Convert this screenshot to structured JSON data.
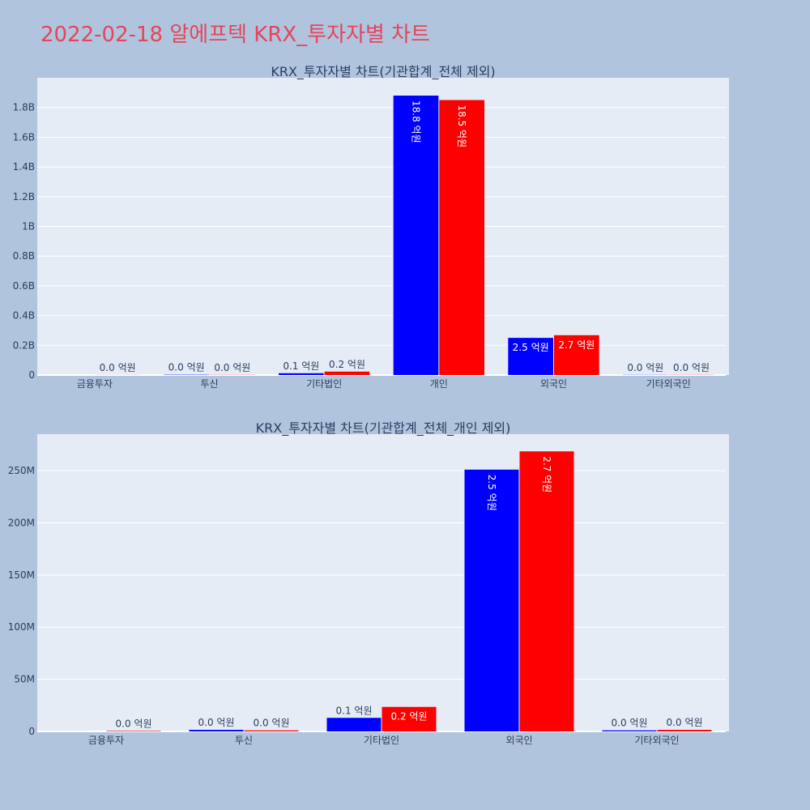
{
  "page": {
    "title": "2022-02-18 알에프텍 KRX_투자자별 차트"
  },
  "colors": {
    "background": "#b0c4de",
    "plot_background": "#e5ecf6",
    "title": "#e5455a",
    "series_a": "#0000ff",
    "series_b": "#ff0000"
  },
  "chart_data": [
    {
      "type": "bar",
      "title": "KRX_투자자별 차트(기관합계_전체 제외)",
      "xlabel": "",
      "ylabel": "",
      "categories": [
        "금융투자",
        "투신",
        "기타법인",
        "개인",
        "외국인",
        "기타외국인"
      ],
      "series": [
        {
          "color": "#0000ff",
          "values": [
            0,
            2000000,
            12000000,
            1880000000,
            250000000,
            1000000
          ],
          "labels": [
            "",
            "0.0 억원",
            "0.1 억원",
            "18.8 억원",
            "2.5 억원",
            "0.0 억원"
          ]
        },
        {
          "color": "#ff0000",
          "values": [
            500000,
            1000000,
            23000000,
            1850000000,
            268000000,
            1000000
          ],
          "labels": [
            "0.0 억원",
            "0.0 억원",
            "0.2 억원",
            "18.5 억원",
            "2.7 억원",
            "0.0 억원"
          ]
        }
      ],
      "ylim": [
        0,
        2000000000
      ],
      "ytick_values": [
        0,
        200000000,
        400000000,
        600000000,
        800000000,
        1000000000,
        1200000000,
        1400000000,
        1600000000,
        1800000000
      ],
      "ytick_labels": [
        "0",
        "0.2B",
        "0.4B",
        "0.6B",
        "0.8B",
        "1B",
        "1.2B",
        "1.4B",
        "1.6B",
        "1.8B"
      ],
      "grid": true
    },
    {
      "type": "bar",
      "title": "KRX_투자자별 차트(기관합계_전체_개인 제외)",
      "xlabel": "",
      "ylabel": "",
      "categories": [
        "금융투자",
        "투신",
        "기타법인",
        "외국인",
        "기타외국인"
      ],
      "series": [
        {
          "color": "#0000ff",
          "values": [
            0,
            1500000,
            13000000,
            251000000,
            1000000
          ],
          "labels": [
            "",
            "0.0 억원",
            "0.1 억원",
            "2.5 억원",
            "0.0 억원"
          ]
        },
        {
          "color": "#ff0000",
          "values": [
            500000,
            1000000,
            23500000,
            268500000,
            1500000
          ],
          "labels": [
            "0.0 억원",
            "0.0 억원",
            "0.2 억원",
            "2.7 억원",
            "0.0 억원"
          ]
        }
      ],
      "ylim": [
        0,
        285000000
      ],
      "ytick_values": [
        0,
        50000000,
        100000000,
        150000000,
        200000000,
        250000000
      ],
      "ytick_labels": [
        "0",
        "50M",
        "100M",
        "150M",
        "200M",
        "250M"
      ],
      "grid": true
    }
  ]
}
